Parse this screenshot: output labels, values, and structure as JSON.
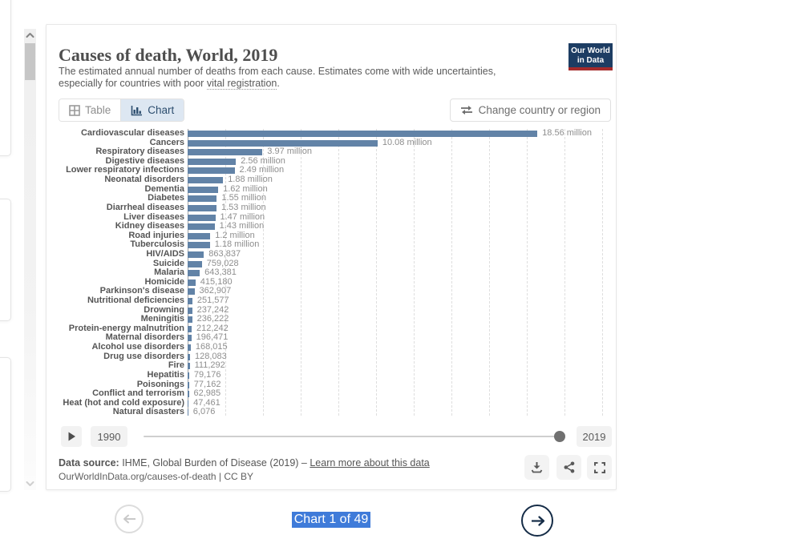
{
  "header": {
    "title": "Causes of death, World, 2019",
    "subtitle_before": "The estimated annual number of deaths from each cause. Estimates come with wide uncertainties, especially for countries with poor ",
    "subtitle_link": "vital registration",
    "subtitle_after": ".",
    "logo_line1": "Our World",
    "logo_line2": "in Data",
    "logo_bg_color": "#1d3d63",
    "logo_accent_color": "#a52b2b"
  },
  "toolbar": {
    "table_label": "Table",
    "chart_label": "Chart",
    "active_tab": "Chart",
    "change_country_label": "Change country or region"
  },
  "chart_data": {
    "type": "bar",
    "orientation": "horizontal",
    "title": "Causes of death, World, 2019",
    "unit": "deaths",
    "year_shown": 2019,
    "grid": true,
    "gridline_every": 2000000,
    "xlim": [
      0,
      22400000
    ],
    "bar_color": "#6283a7",
    "categories": [
      "Cardiovascular diseases",
      "Cancers",
      "Respiratory diseases",
      "Digestive diseases",
      "Lower respiratory infections",
      "Neonatal disorders",
      "Dementia",
      "Diabetes",
      "Diarrheal diseases",
      "Liver diseases",
      "Kidney diseases",
      "Road injuries",
      "Tuberculosis",
      "HIV/AIDS",
      "Suicide",
      "Malaria",
      "Homicide",
      "Parkinson's disease",
      "Nutritional deficiencies",
      "Drowning",
      "Meningitis",
      "Protein-energy malnutrition",
      "Maternal disorders",
      "Alcohol use disorders",
      "Drug use disorders",
      "Fire",
      "Hepatitis",
      "Poisonings",
      "Conflict and terrorism",
      "Heat (hot and cold exposure)",
      "Natural disasters"
    ],
    "values": [
      18560000,
      10080000,
      3970000,
      2560000,
      2490000,
      1880000,
      1620000,
      1550000,
      1530000,
      1470000,
      1430000,
      1200000,
      1180000,
      863837,
      759028,
      643381,
      415180,
      362907,
      251577,
      237242,
      236222,
      212242,
      196471,
      168015,
      128083,
      111292,
      79176,
      77162,
      62985,
      47461,
      6076
    ],
    "value_labels": [
      "18.56 million",
      "10.08 million",
      "3.97 million",
      "2.56 million",
      "2.49 million",
      "1.88 million",
      "1.62 million",
      "1.55 million",
      "1.53 million",
      "1.47 million",
      "1.43 million",
      "1.2 million",
      "1.18 million",
      "863,837",
      "759,028",
      "643,381",
      "415,180",
      "362,907",
      "251,577",
      "237,242",
      "236,222",
      "212,242",
      "196,471",
      "168,015",
      "128,083",
      "111,292",
      "79,176",
      "77,162",
      "62,985",
      "47,461",
      "6,076"
    ]
  },
  "timeline": {
    "start_year": "1990",
    "end_year": "2019",
    "handle_position": "end"
  },
  "footer": {
    "source_label": "Data source:",
    "source_text": " IHME, Global Burden of Disease (2019) – ",
    "source_link": "Learn more about this data",
    "citation": "OurWorldInData.org/causes-of-death | CC BY"
  },
  "nav": {
    "counter_label": "Chart 1 of 49",
    "counter_highlight_color": "#3f7bd9"
  },
  "icons": [
    "grid-icon",
    "bar-chart-icon",
    "swap-arrows-icon",
    "play-icon",
    "download-icon",
    "share-icon",
    "expand-icon",
    "arrow-left-icon",
    "arrow-right-icon",
    "chevron-up-icon",
    "chevron-down-icon"
  ]
}
